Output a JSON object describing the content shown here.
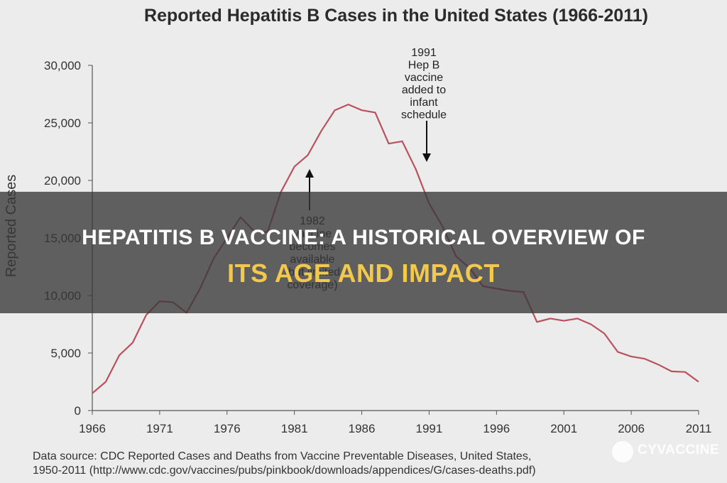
{
  "chart_data": {
    "type": "line",
    "title": "Reported Hepatitis B Cases in the United States (1966-2011)",
    "ylabel": "Reported Cases",
    "xlabel": "",
    "xlim": [
      1966,
      2011
    ],
    "ylim": [
      0,
      30000
    ],
    "x_ticks": [
      1966,
      1971,
      1976,
      1981,
      1986,
      1991,
      1996,
      2001,
      2006,
      2011
    ],
    "y_ticks": [
      0,
      5000,
      10000,
      15000,
      20000,
      25000,
      30000
    ],
    "y_tick_labels": [
      "0",
      "5,000",
      "10,000",
      "15,000",
      "20,000",
      "25,000",
      "30,000"
    ],
    "grid": false,
    "legend": "none",
    "series": [
      {
        "color": "#b9515f",
        "x": [
          1966,
          1967,
          1968,
          1969,
          1970,
          1971,
          1972,
          1973,
          1974,
          1975,
          1976,
          1977,
          1978,
          1979,
          1980,
          1981,
          1982,
          1983,
          1984,
          1985,
          1986,
          1987,
          1988,
          1989,
          1990,
          1991,
          1992,
          1993,
          1994,
          1995,
          1996,
          1997,
          1998,
          1999,
          2000,
          2001,
          2002,
          2003,
          2004,
          2005,
          2006,
          2007,
          2008,
          2009,
          2010,
          2011
        ],
        "values": [
          1500,
          2500,
          4800,
          5900,
          8300,
          9500,
          9400,
          8500,
          10600,
          13200,
          15000,
          16800,
          15600,
          15500,
          19000,
          21200,
          22200,
          24300,
          26100,
          26600,
          26100,
          25900,
          23200,
          23400,
          21000,
          18000,
          16000,
          13400,
          12400,
          10800,
          10600,
          10400,
          10300,
          7700,
          8000,
          7800,
          8000,
          7500,
          6700,
          5100,
          4700,
          4500,
          4000,
          3400,
          3350,
          2500
        ]
      }
    ],
    "annotations": [
      {
        "lines": [
          "1991",
          "Hep B",
          "vaccine",
          "added to",
          "infant",
          "schedule"
        ]
      },
      {
        "lines": [
          "1982",
          "vaccine",
          "becomes",
          "available",
          "(but limited",
          "coverage)"
        ]
      }
    ],
    "source_lines": [
      "Data source: CDC Reported Cases and Deaths from Vaccine Preventable Diseases, United States,",
      "1950-2011 (http://www.cdc.gov/vaccines/pubs/pinkbook/downloads/appendices/G/cases-deaths.pdf)"
    ]
  },
  "overlay": {
    "line1": "HEPATITIS B VACCINE: A HISTORICAL OVERVIEW OF",
    "line2": "ITS AGE AND IMPACT",
    "line1_color": "#ffffff",
    "line2_color": "#f2c94c"
  },
  "watermark": {
    "text": "CYVACCINE"
  }
}
